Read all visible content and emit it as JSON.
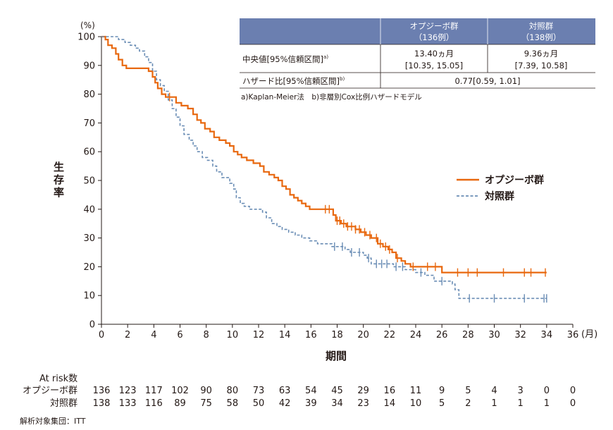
{
  "chart_data": {
    "type": "line",
    "subtype": "kaplan-meier",
    "ylabel_unit": "(%)",
    "ylabel": "生存率",
    "xlabel": "期間",
    "xunit": "(月)",
    "xlim": [
      0,
      36
    ],
    "ylim": [
      0,
      100
    ],
    "xticks": [
      0,
      2,
      4,
      6,
      8,
      10,
      12,
      14,
      16,
      18,
      20,
      22,
      24,
      26,
      28,
      30,
      32,
      34,
      36
    ],
    "yticks": [
      0,
      10,
      20,
      30,
      40,
      50,
      60,
      70,
      80,
      90,
      100
    ],
    "series": [
      {
        "name": "オプジーボ群",
        "color": "#e8680f",
        "style": "solid",
        "points": [
          [
            0,
            100
          ],
          [
            0.3,
            99
          ],
          [
            0.5,
            97
          ],
          [
            0.8,
            96
          ],
          [
            1.1,
            94
          ],
          [
            1.3,
            92
          ],
          [
            1.6,
            90
          ],
          [
            1.9,
            89
          ],
          [
            2.5,
            89
          ],
          [
            3.0,
            89
          ],
          [
            3.6,
            88
          ],
          [
            3.9,
            86
          ],
          [
            4.1,
            84
          ],
          [
            4.3,
            82
          ],
          [
            4.6,
            80
          ],
          [
            4.9,
            79
          ],
          [
            5.5,
            79
          ],
          [
            5.7,
            77
          ],
          [
            6.1,
            76
          ],
          [
            6.6,
            75
          ],
          [
            7.0,
            73
          ],
          [
            7.3,
            71
          ],
          [
            7.6,
            70
          ],
          [
            7.9,
            68
          ],
          [
            8.3,
            67
          ],
          [
            8.6,
            65
          ],
          [
            9.0,
            64
          ],
          [
            9.5,
            63
          ],
          [
            9.8,
            62
          ],
          [
            10.1,
            60
          ],
          [
            10.4,
            59
          ],
          [
            10.7,
            58
          ],
          [
            11.1,
            57
          ],
          [
            11.6,
            56
          ],
          [
            12.1,
            55
          ],
          [
            12.4,
            53
          ],
          [
            12.8,
            52
          ],
          [
            13.2,
            51
          ],
          [
            13.5,
            50
          ],
          [
            13.8,
            48
          ],
          [
            14.1,
            47
          ],
          [
            14.4,
            45
          ],
          [
            14.7,
            44
          ],
          [
            15.0,
            43
          ],
          [
            15.3,
            42
          ],
          [
            15.6,
            41
          ],
          [
            15.9,
            40
          ],
          [
            16.5,
            40
          ],
          [
            17.2,
            40
          ],
          [
            17.7,
            38
          ],
          [
            17.9,
            36
          ],
          [
            18.3,
            35
          ],
          [
            18.7,
            34
          ],
          [
            19.4,
            33
          ],
          [
            19.8,
            32
          ],
          [
            20.2,
            31
          ],
          [
            20.6,
            30
          ],
          [
            21.1,
            28
          ],
          [
            21.5,
            27
          ],
          [
            21.9,
            26
          ],
          [
            22.2,
            25
          ],
          [
            22.5,
            23
          ],
          [
            22.9,
            22
          ],
          [
            23.2,
            21
          ],
          [
            23.6,
            20
          ],
          [
            24.5,
            20
          ],
          [
            25.8,
            20
          ],
          [
            26.0,
            18
          ],
          [
            27.0,
            18
          ],
          [
            30.0,
            18
          ],
          [
            34.0,
            18
          ]
        ],
        "censor_x": [
          5.2,
          17.1,
          17.4,
          18.0,
          18.2,
          18.5,
          18.8,
          19.1,
          19.4,
          19.7,
          20.1,
          20.5,
          21.0,
          21.3,
          21.7,
          22.0,
          22.6,
          23.8,
          24.9,
          25.5,
          27.2,
          28.0,
          28.7,
          30.7,
          32.3,
          32.8,
          33.9
        ]
      },
      {
        "name": "対照群",
        "color": "#6a8db5",
        "style": "dashed",
        "points": [
          [
            0,
            100
          ],
          [
            0.9,
            100
          ],
          [
            1.3,
            99
          ],
          [
            1.8,
            98
          ],
          [
            2.2,
            97
          ],
          [
            2.6,
            96
          ],
          [
            2.9,
            95
          ],
          [
            3.3,
            93
          ],
          [
            3.6,
            91
          ],
          [
            3.9,
            88
          ],
          [
            4.2,
            85
          ],
          [
            4.5,
            83
          ],
          [
            4.8,
            81
          ],
          [
            5.1,
            78
          ],
          [
            5.4,
            75
          ],
          [
            5.7,
            72
          ],
          [
            6.0,
            69
          ],
          [
            6.3,
            66
          ],
          [
            6.7,
            64
          ],
          [
            7.0,
            62
          ],
          [
            7.3,
            60
          ],
          [
            7.7,
            58
          ],
          [
            8.1,
            57
          ],
          [
            8.5,
            55
          ],
          [
            8.8,
            53
          ],
          [
            9.2,
            51
          ],
          [
            9.6,
            51
          ],
          [
            9.8,
            49
          ],
          [
            10.1,
            47
          ],
          [
            10.3,
            44
          ],
          [
            10.6,
            42
          ],
          [
            10.9,
            41
          ],
          [
            11.3,
            40
          ],
          [
            11.8,
            40
          ],
          [
            12.3,
            39
          ],
          [
            12.6,
            37
          ],
          [
            13.0,
            35
          ],
          [
            13.4,
            34
          ],
          [
            13.8,
            33
          ],
          [
            14.3,
            32
          ],
          [
            14.8,
            31
          ],
          [
            15.3,
            30
          ],
          [
            15.9,
            29
          ],
          [
            16.5,
            28
          ],
          [
            17.1,
            28
          ],
          [
            17.6,
            27
          ],
          [
            18.1,
            27
          ],
          [
            18.6,
            26
          ],
          [
            19.0,
            25
          ],
          [
            19.6,
            25
          ],
          [
            20.0,
            24
          ],
          [
            20.3,
            23
          ],
          [
            20.6,
            21
          ],
          [
            21.6,
            21
          ],
          [
            22.0,
            21
          ],
          [
            22.3,
            20
          ],
          [
            22.7,
            20
          ],
          [
            23.2,
            19
          ],
          [
            24.0,
            18
          ],
          [
            24.7,
            17
          ],
          [
            25.4,
            15
          ],
          [
            26.4,
            15
          ],
          [
            26.8,
            14
          ],
          [
            27.0,
            12
          ],
          [
            27.3,
            9
          ],
          [
            28.0,
            9
          ],
          [
            30.0,
            9
          ],
          [
            34.0,
            9
          ]
        ],
        "censor_x": [
          17.8,
          18.4,
          19.1,
          19.7,
          20.4,
          21.0,
          21.4,
          21.8,
          22.5,
          23.0,
          24.4,
          26.0,
          28.1,
          30.0,
          32.3,
          33.8,
          34.0
        ]
      }
    ],
    "legend": [
      "オプジーボ群",
      "対照群"
    ],
    "legend_position": "right"
  },
  "at_risk": {
    "title": "At risk数",
    "rows": [
      {
        "label": "オプジーボ群",
        "values": [
          "136",
          "123",
          "117",
          "102",
          "90",
          "80",
          "73",
          "63",
          "54",
          "45",
          "29",
          "16",
          "11",
          "9",
          "5",
          "4",
          "3",
          "0",
          "0"
        ]
      },
      {
        "label": "対照群",
        "values": [
          "138",
          "133",
          "116",
          "89",
          "75",
          "58",
          "50",
          "42",
          "39",
          "34",
          "23",
          "14",
          "10",
          "5",
          "2",
          "1",
          "1",
          "1",
          "0"
        ]
      }
    ]
  },
  "table": {
    "col1_header": "オプジーボ群",
    "col1_sub": "（136例）",
    "col2_header": "対照群",
    "col2_sub": "（138例）",
    "row1_label": "中央値[95%信頼区間]",
    "row1_sup": "a)",
    "row1_col1_a": "13.40ヵ月",
    "row1_col1_b": "[10.35, 15.05]",
    "row1_col2_a": "9.36ヵ月",
    "row1_col2_b": "[7.39, 10.58]",
    "row2_label": "ハザード比[95%信頼区間]",
    "row2_sup": "b)",
    "row2_value": "0.77[0.59, 1.01]",
    "header_color": "#6b7fb0",
    "footnote": "a)Kaplan-Meier法　b)非層別Cox比例ハザードモデル"
  },
  "footer": "解析対象集団：ITT"
}
